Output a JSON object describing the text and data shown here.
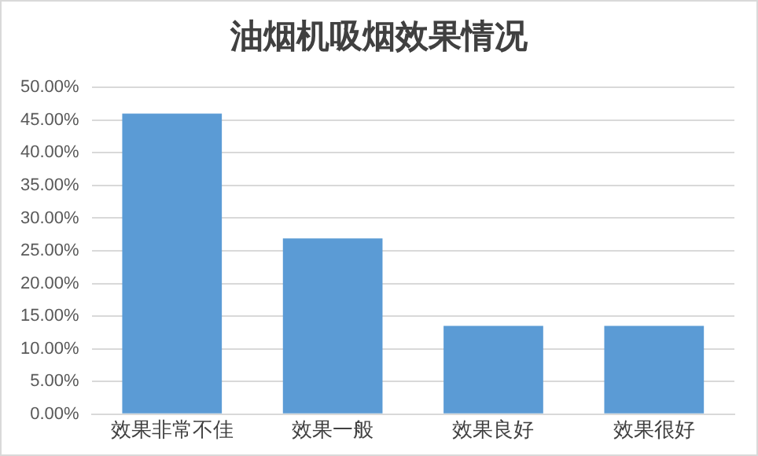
{
  "chart_data": {
    "type": "bar",
    "title": "油烟机吸烟效果情况",
    "categories": [
      "效果非常不佳",
      "效果一般",
      "效果良好",
      "效果很好"
    ],
    "values": [
      46,
      26.9,
      13.5,
      13.5
    ],
    "color": "#5b9bd5",
    "ylim": [
      0,
      50
    ],
    "yticks": [
      {
        "value": 0,
        "label": "0.00%"
      },
      {
        "value": 5,
        "label": "5.00%"
      },
      {
        "value": 10,
        "label": "10.00%"
      },
      {
        "value": 15,
        "label": "15.00%"
      },
      {
        "value": 20,
        "label": "20.00%"
      },
      {
        "value": 25,
        "label": "25.00%"
      },
      {
        "value": 30,
        "label": "30.00%"
      },
      {
        "value": 35,
        "label": "35.00%"
      },
      {
        "value": 40,
        "label": "40.00%"
      },
      {
        "value": 45,
        "label": "45.00%"
      },
      {
        "value": 50,
        "label": "50.00%"
      }
    ],
    "grid": "y"
  }
}
